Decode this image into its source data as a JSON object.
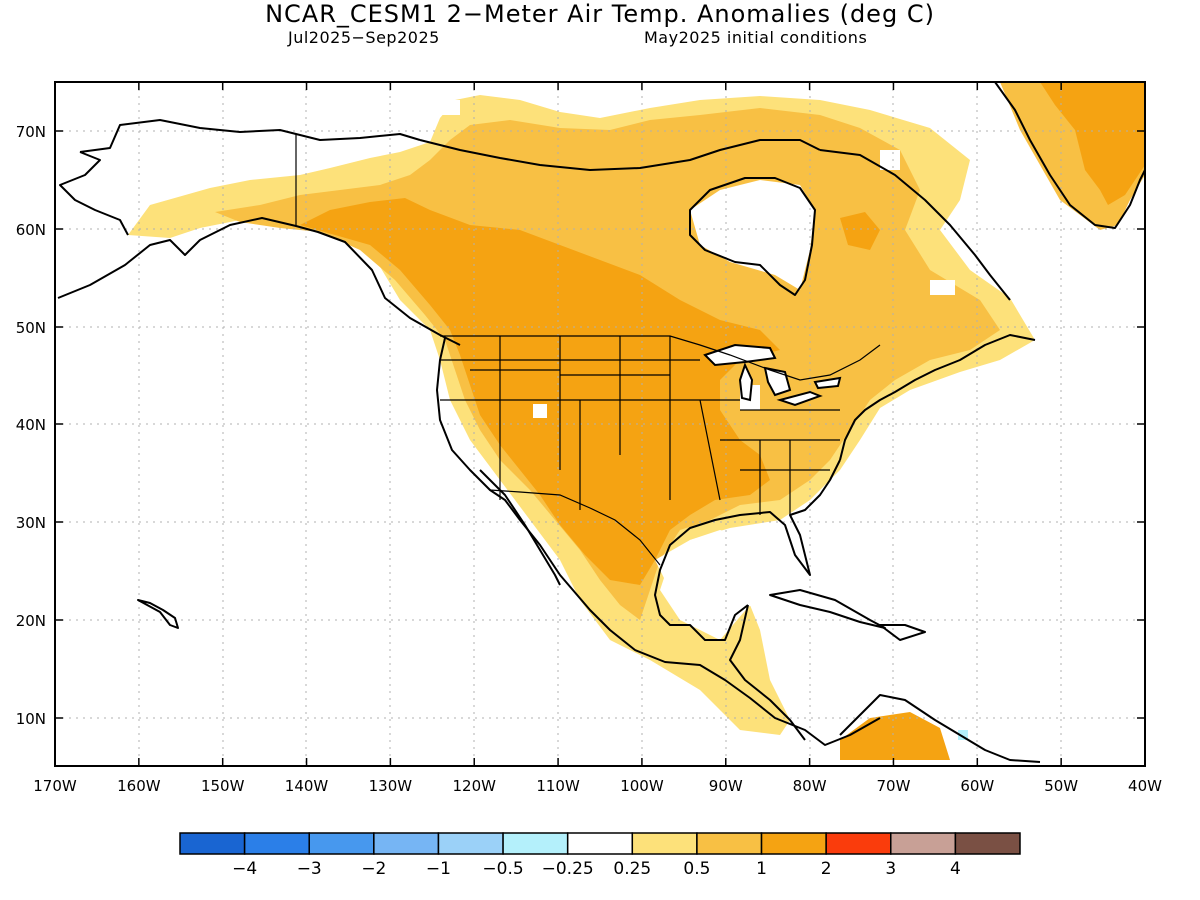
{
  "title": "NCAR_CESM1 2−Meter Air Temp. Anomalies (deg C)",
  "period": "Jul2025−Sep2025",
  "init": "May2025 initial conditions",
  "lat_labels": [
    "70N",
    "60N",
    "50N",
    "40N",
    "30N",
    "20N",
    "10N"
  ],
  "lon_labels": [
    "170W",
    "160W",
    "150W",
    "140W",
    "130W",
    "120W",
    "110W",
    "100W",
    "90W",
    "80W",
    "70W",
    "60W",
    "50W",
    "40W"
  ],
  "legend": {
    "colors": [
      "#1965d2",
      "#2b7fe8",
      "#4798ee",
      "#76b5f4",
      "#9bd1f8",
      "#b4f0fb",
      "#ffffff",
      "#fde17a",
      "#f8c044",
      "#f5a312",
      "#fa3c0c",
      "#c8a096",
      "#7a5044"
    ],
    "labels": [
      "−4",
      "−3",
      "−2",
      "−1",
      "−0.5",
      "−0.25",
      "0.25",
      "0.5",
      "1",
      "2",
      "3",
      "4"
    ]
  },
  "anomaly_classes": {
    "light": "0.25 to 0.5",
    "mid": "0.5 to 1",
    "strong": "1 to 2",
    "neg": "−0.5 to −0.25"
  }
}
